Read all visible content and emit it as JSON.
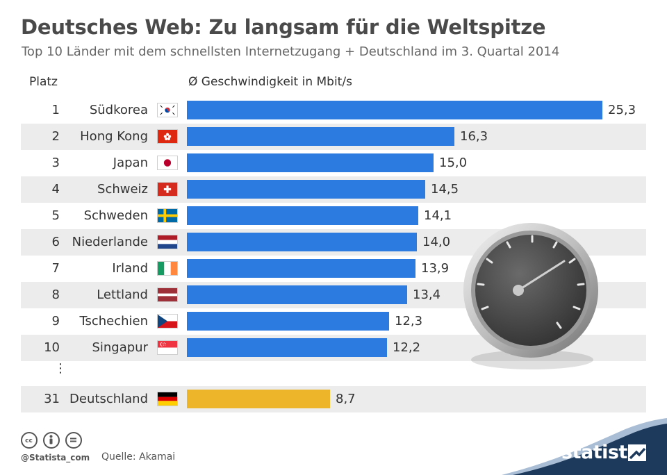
{
  "title": "Deutsches Web: Zu langsam für die Weltspitze",
  "subtitle": "Top 10 Länder mit dem schnellsten Internetzugang + Deutschland im 3. Quartal 2014",
  "headers": {
    "rank": "Platz",
    "value": "Ø Geschwindigkeit in Mbit/s"
  },
  "ellipsis": "⋮",
  "colors": {
    "bar": "#2b7be0",
    "highlight": "#ecb52a",
    "shade": "#ececec",
    "text": "#333333"
  },
  "chart_data": {
    "type": "bar",
    "orientation": "horizontal",
    "title": "Deutsches Web: Zu langsam für die Weltspitze",
    "subtitle": "Top 10 Länder mit dem schnellsten Internetzugang + Deutschland im 3. Quartal 2014",
    "xlabel": "Ø Geschwindigkeit in Mbit/s",
    "ylabel": "Platz",
    "xlim": [
      0,
      25.3
    ],
    "grid": false,
    "categories": [
      "Südkorea",
      "Hong Kong",
      "Japan",
      "Schweiz",
      "Schweden",
      "Niederlande",
      "Irland",
      "Lettland",
      "Tschechien",
      "Singapur",
      "Deutschland"
    ],
    "ranks": [
      "1",
      "2",
      "3",
      "4",
      "5",
      "6",
      "7",
      "8",
      "9",
      "10",
      "31"
    ],
    "values": [
      25.3,
      16.3,
      15.0,
      14.5,
      14.1,
      14.0,
      13.9,
      13.4,
      12.3,
      12.2,
      8.7
    ],
    "value_labels": [
      "25,3",
      "16,3",
      "15,0",
      "14,5",
      "14,1",
      "14,0",
      "13,9",
      "13,4",
      "12,3",
      "12,2",
      "8,7"
    ],
    "flags": [
      "south-korea-flag",
      "hong-kong-flag",
      "japan-flag",
      "switzerland-flag",
      "sweden-flag",
      "netherlands-flag",
      "ireland-flag",
      "latvia-flag",
      "czechia-flag",
      "singapore-flag",
      "germany-flag"
    ],
    "highlight": "Deutschland"
  },
  "footer": {
    "handle": "@Statista_com",
    "source": "Quelle: Akamai",
    "brand": "statista",
    "icons": [
      "cc-icon",
      "attribution-icon",
      "no-derivatives-icon"
    ]
  }
}
